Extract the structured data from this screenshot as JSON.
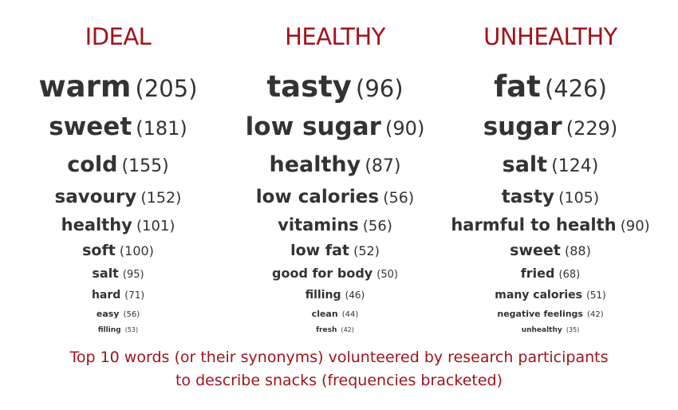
{
  "columns": [
    {
      "heading": "IDEAL",
      "words": [
        {
          "word": "warm",
          "count": "(205)"
        },
        {
          "word": "sweet",
          "count": "(181)"
        },
        {
          "word": "cold",
          "count": "(155)"
        },
        {
          "word": "savoury",
          "count": "(152)"
        },
        {
          "word": "healthy",
          "count": "(101)"
        },
        {
          "word": "soft",
          "count": "(100)"
        },
        {
          "word": "salt",
          "count": "(95)"
        },
        {
          "word": "hard",
          "count": "(71)"
        },
        {
          "word": "easy",
          "count": "(56)"
        },
        {
          "word": "filling",
          "count": "(53)"
        }
      ]
    },
    {
      "heading": "HEALTHY",
      "words": [
        {
          "word": "tasty",
          "count": "(96)"
        },
        {
          "word": "low sugar",
          "count": "(90)"
        },
        {
          "word": "healthy",
          "count": "(87)"
        },
        {
          "word": "low calories",
          "count": "(56)"
        },
        {
          "word": "vitamins",
          "count": "(56)"
        },
        {
          "word": "low fat",
          "count": "(52)"
        },
        {
          "word": "good for body",
          "count": "(50)"
        },
        {
          "word": "filling",
          "count": "(46)"
        },
        {
          "word": "clean",
          "count": "(44)"
        },
        {
          "word": "fresh",
          "count": "(42)"
        }
      ]
    },
    {
      "heading": "UNHEALTHY",
      "words": [
        {
          "word": "fat",
          "count": "(426)"
        },
        {
          "word": "sugar",
          "count": "(229)"
        },
        {
          "word": "salt",
          "count": "(124)"
        },
        {
          "word": "tasty",
          "count": "(105)"
        },
        {
          "word": "harmful to health",
          "count": "(90)"
        },
        {
          "word": "sweet",
          "count": "(88)"
        },
        {
          "word": "fried",
          "count": "(68)"
        },
        {
          "word": "many calories",
          "count": "(51)"
        },
        {
          "word": "negative feelings",
          "count": "(42)"
        },
        {
          "word": "unhealthy",
          "count": "(35)"
        }
      ]
    }
  ],
  "caption": {
    "line1": "Top 10 words (or their synonyms) volunteered by research participants",
    "line2": "to describe snacks (frequencies bracketed)"
  },
  "colors": {
    "heading": "#a0141b",
    "word": "#333333",
    "background": "#ffffff"
  }
}
